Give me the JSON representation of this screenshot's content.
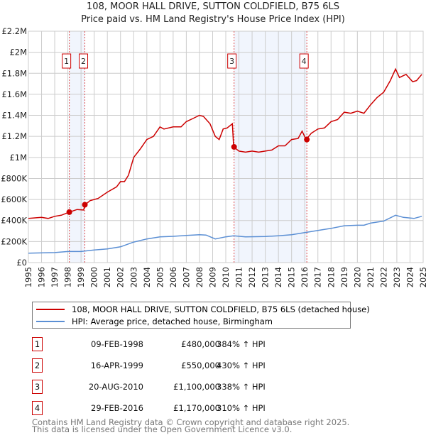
{
  "title": "108, MOOR HALL DRIVE, SUTTON COLDFIELD, B75 6LS",
  "subtitle": "Price paid vs. HM Land Registry's House Price Index (HPI)",
  "chart_data": {
    "type": "line",
    "xlim": [
      1995,
      2025
    ],
    "ylim": [
      0,
      2200000
    ],
    "y_ticks": [
      {
        "v": 0,
        "label": "£0"
      },
      {
        "v": 200000,
        "label": "£200K"
      },
      {
        "v": 400000,
        "label": "£400K"
      },
      {
        "v": 600000,
        "label": "£600K"
      },
      {
        "v": 800000,
        "label": "£800K"
      },
      {
        "v": 1000000,
        "label": "£1M"
      },
      {
        "v": 1200000,
        "label": "£1.2M"
      },
      {
        "v": 1400000,
        "label": "£1.4M"
      },
      {
        "v": 1600000,
        "label": "£1.6M"
      },
      {
        "v": 1800000,
        "label": "£1.8M"
      },
      {
        "v": 2000000,
        "label": "£2M"
      },
      {
        "v": 2200000,
        "label": "£2.2M"
      }
    ],
    "x_ticks": [
      "1995",
      "1996",
      "1997",
      "1998",
      "1999",
      "2000",
      "2001",
      "2002",
      "2003",
      "2004",
      "2005",
      "2006",
      "2007",
      "2008",
      "2009",
      "2010",
      "2011",
      "2012",
      "2013",
      "2014",
      "2015",
      "2016",
      "2017",
      "2018",
      "2019",
      "2020",
      "2021",
      "2022",
      "2023",
      "2024",
      "2025"
    ],
    "grid": true,
    "series": [
      {
        "name": "108, MOOR HALL DRIVE, SUTTON COLDFIELD, B75 6LS (detached house)",
        "color": "#cc0000",
        "x": [
          1995,
          1996,
          1996.5,
          1997,
          1997.5,
          1998.1,
          1998.7,
          1999.2,
          1999.3,
          1999.7,
          2000.3,
          2001,
          2001.7,
          2002,
          2002.3,
          2002.6,
          2003,
          2003.5,
          2004,
          2004.5,
          2005,
          2005.3,
          2006,
          2006.6,
          2007,
          2007.5,
          2008,
          2008.3,
          2008.8,
          2009.2,
          2009.5,
          2009.8,
          2010.1,
          2010.5,
          2010.6,
          2011,
          2011.5,
          2012,
          2012.5,
          2013,
          2013.5,
          2014,
          2014.5,
          2015,
          2015.5,
          2015.8,
          2016.1,
          2016.5,
          2017,
          2017.5,
          2018,
          2018.5,
          2019,
          2019.5,
          2020,
          2020.5,
          2021,
          2021.5,
          2022,
          2022.5,
          2022.9,
          2023.2,
          2023.7,
          2024.2,
          2024.5,
          2024.9
        ],
        "y": [
          420000,
          430000,
          420000,
          440000,
          450000,
          480000,
          505000,
          500000,
          550000,
          590000,
          610000,
          670000,
          720000,
          770000,
          770000,
          830000,
          1000000,
          1080000,
          1170000,
          1200000,
          1290000,
          1270000,
          1290000,
          1290000,
          1340000,
          1370000,
          1400000,
          1390000,
          1320000,
          1200000,
          1170000,
          1270000,
          1280000,
          1320000,
          1100000,
          1060000,
          1050000,
          1060000,
          1050000,
          1060000,
          1070000,
          1110000,
          1110000,
          1170000,
          1180000,
          1250000,
          1170000,
          1230000,
          1270000,
          1280000,
          1340000,
          1360000,
          1430000,
          1420000,
          1440000,
          1420000,
          1500000,
          1570000,
          1620000,
          1730000,
          1840000,
          1760000,
          1790000,
          1720000,
          1730000,
          1790000
        ]
      },
      {
        "name": "HPI: Average price, detached house, Birmingham",
        "color": "#5b8fd4",
        "x": [
          1995,
          1997,
          1998,
          1999,
          2000,
          2001,
          2002,
          2003,
          2004,
          2005,
          2006,
          2007,
          2008,
          2008.5,
          2009.2,
          2010,
          2010.6,
          2011.5,
          2013,
          2014,
          2015,
          2016,
          2017,
          2018,
          2019,
          2020,
          2020.5,
          2021,
          2022,
          2022.9,
          2023.5,
          2024.3,
          2024.9
        ],
        "y": [
          90000,
          95000,
          105000,
          105000,
          120000,
          130000,
          150000,
          195000,
          225000,
          245000,
          250000,
          258000,
          265000,
          262000,
          225000,
          245000,
          255000,
          245000,
          248000,
          255000,
          265000,
          285000,
          305000,
          325000,
          350000,
          355000,
          355000,
          375000,
          395000,
          450000,
          430000,
          420000,
          440000
        ]
      }
    ],
    "sales": [
      {
        "n": "1",
        "x": 1998.11,
        "y": 480000
      },
      {
        "n": "2",
        "x": 1999.29,
        "y": 550000
      },
      {
        "n": "3",
        "x": 2010.63,
        "y": 1100000
      },
      {
        "n": "4",
        "x": 2016.16,
        "y": 1170000
      }
    ],
    "shaded": [
      [
        1998.11,
        1999.29
      ],
      [
        2010.63,
        2016.16
      ]
    ]
  },
  "legend": {
    "items": [
      {
        "label": "108, MOOR HALL DRIVE, SUTTON COLDFIELD, B75 6LS (detached house)",
        "color": "#cc0000"
      },
      {
        "label": "HPI: Average price, detached house, Birmingham",
        "color": "#5b8fd4"
      }
    ]
  },
  "transactions": [
    {
      "n": "1",
      "date": "09-FEB-1998",
      "price": "£480,000",
      "hpi": "384% ↑ HPI"
    },
    {
      "n": "2",
      "date": "16-APR-1999",
      "price": "£550,000",
      "hpi": "430% ↑ HPI"
    },
    {
      "n": "3",
      "date": "20-AUG-2010",
      "price": "£1,100,000",
      "hpi": "338% ↑ HPI"
    },
    {
      "n": "4",
      "date": "29-FEB-2016",
      "price": "£1,170,000",
      "hpi": "310% ↑ HPI"
    }
  ],
  "footer": [
    "Contains HM Land Registry data © Crown copyright and database right 2025.",
    "This data is licensed under the Open Government Licence v3.0."
  ]
}
